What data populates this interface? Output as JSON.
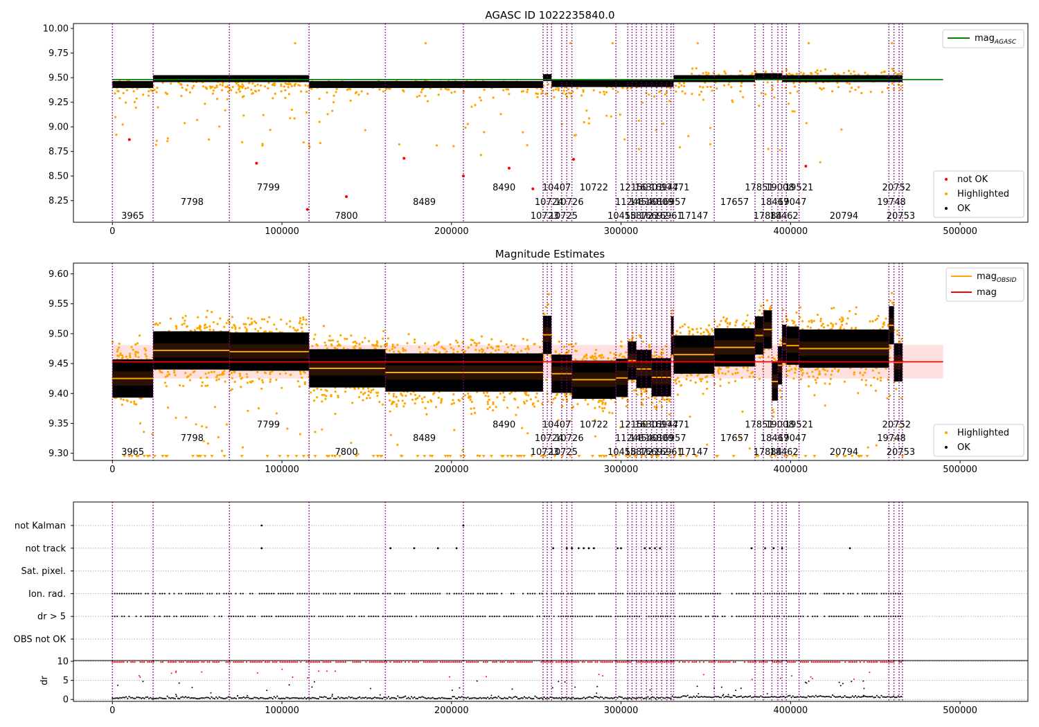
{
  "colors": {
    "ok": "#000000",
    "highlighted": "#ffa500",
    "not_ok": "#ff0000",
    "agasc_line": "#008000",
    "mag_line": "#ff0000",
    "mag_band": "#ffcccc",
    "obsid_line": "#ffa500",
    "obsid_separator": "#800080",
    "grid": "#b0b0b0"
  },
  "x_axis": {
    "range": [
      -23000,
      540000
    ],
    "ticks": [
      0,
      100000,
      200000,
      300000,
      400000,
      500000
    ],
    "tick_labels": [
      "0",
      "100000",
      "200000",
      "300000",
      "400000",
      "500000"
    ]
  },
  "obsid_boundaries": [
    0,
    24000,
    69000,
    116000,
    161000,
    207000,
    254000,
    256500,
    259000,
    265000,
    268000,
    271000,
    297000,
    304000,
    306500,
    309000,
    312000,
    315000,
    318000,
    321000,
    324000,
    327000,
    329500,
    331000,
    355000,
    379000,
    384000,
    389000,
    392500,
    395000,
    397500,
    405000,
    458000,
    461000,
    464000,
    466000
  ],
  "obsid_labels": [
    {
      "text": "3965",
      "x": 12000,
      "row": 2
    },
    {
      "text": "7798",
      "x": 47000,
      "row": 1
    },
    {
      "text": "7799",
      "x": 92000,
      "row": 0
    },
    {
      "text": "7800",
      "x": 138000,
      "row": 2
    },
    {
      "text": "8489",
      "x": 184000,
      "row": 1
    },
    {
      "text": "8490",
      "x": 231000,
      "row": 0
    },
    {
      "text": "10723",
      "x": 255000,
      "row": 2
    },
    {
      "text": "10724",
      "x": 257500,
      "row": 1
    },
    {
      "text": "10407",
      "x": 262000,
      "row": 0
    },
    {
      "text": "10725",
      "x": 266000,
      "row": 2
    },
    {
      "text": "10726",
      "x": 269500,
      "row": 1
    },
    {
      "text": "10722",
      "x": 284000,
      "row": 0
    },
    {
      "text": "10458",
      "x": 300500,
      "row": 2
    },
    {
      "text": "11246",
      "x": 305000,
      "row": 1
    },
    {
      "text": "12150",
      "x": 307500,
      "row": 0
    },
    {
      "text": "15872",
      "x": 310500,
      "row": 2
    },
    {
      "text": "14540",
      "x": 313500,
      "row": 1
    },
    {
      "text": "16301",
      "x": 316500,
      "row": 0
    },
    {
      "text": "16692",
      "x": 319500,
      "row": 2
    },
    {
      "text": "16809",
      "x": 322500,
      "row": 1
    },
    {
      "text": "16947",
      "x": 325500,
      "row": 0
    },
    {
      "text": "16961",
      "x": 328000,
      "row": 2
    },
    {
      "text": "16957",
      "x": 330000,
      "row": 1
    },
    {
      "text": "17471",
      "x": 332000,
      "row": 0
    },
    {
      "text": "17147",
      "x": 343000,
      "row": 2
    },
    {
      "text": "17657",
      "x": 367000,
      "row": 1
    },
    {
      "text": "17851",
      "x": 381500,
      "row": 0
    },
    {
      "text": "17884",
      "x": 386500,
      "row": 2
    },
    {
      "text": "18467",
      "x": 390700,
      "row": 1
    },
    {
      "text": "19008",
      "x": 393700,
      "row": 0
    },
    {
      "text": "18462",
      "x": 396200,
      "row": 2
    },
    {
      "text": "19047",
      "x": 401000,
      "row": 1
    },
    {
      "text": "19521",
      "x": 405000,
      "row": 0
    },
    {
      "text": "20794",
      "x": 431500,
      "row": 2
    },
    {
      "text": "19748",
      "x": 459500,
      "row": 1
    },
    {
      "text": "20752",
      "x": 462500,
      "row": 0
    },
    {
      "text": "20753",
      "x": 465000,
      "row": 2
    }
  ],
  "panel1": {
    "title": "AGASC ID 1022235840.0",
    "ylim": [
      8.03,
      10.05
    ],
    "yticks": [
      8.25,
      8.5,
      8.75,
      9.0,
      9.25,
      9.5,
      9.75,
      10.0
    ],
    "ytick_labels": [
      "8.25",
      "8.50",
      "8.75",
      "9.00",
      "9.25",
      "9.50",
      "9.75",
      "10.00"
    ],
    "label_rows_y": [
      8.39,
      8.24,
      8.1
    ],
    "agasc_mag": 9.48,
    "agasc_xrange": [
      0,
      490000
    ],
    "legend_agasc": "mag",
    "legend_agasc_sub": "AGASC",
    "legend_not_ok": "not OK",
    "legend_highlighted": "Highlighted",
    "legend_ok": "OK"
  },
  "panel2": {
    "title": "Magnitude Estimates",
    "ylim": [
      9.288,
      9.618
    ],
    "yticks": [
      9.3,
      9.35,
      9.4,
      9.45,
      9.5,
      9.55,
      9.6
    ],
    "ytick_labels": [
      "9.30",
      "9.35",
      "9.40",
      "9.45",
      "9.50",
      "9.55",
      "9.60"
    ],
    "label_rows_y": [
      9.349,
      9.326,
      9.303
    ],
    "mag": 9.453,
    "mag_band": [
      9.425,
      9.481
    ],
    "mag_xrange": [
      0,
      490000
    ],
    "legend_obsid": "mag",
    "legend_obsid_sub": "OBSID",
    "legend_mag": "mag",
    "legend_highlighted": "Highlighted",
    "legend_ok": "OK"
  },
  "chart_data": [
    {
      "type": "scatter",
      "title": "AGASC ID 1022235840.0",
      "xlabel": "",
      "ylabel": "",
      "ylim": [
        8.03,
        10.05
      ],
      "series": [
        {
          "name": "mag_AGASC",
          "style": "line",
          "x": [
            0,
            490000
          ],
          "y": [
            9.48,
            9.48
          ]
        },
        {
          "name": "OK",
          "description_of_trend": "dense band near segment level",
          "segments": [
            {
              "x": [
                0,
                24000
              ],
              "y": 9.43
            },
            {
              "x": [
                24000,
                116000
              ],
              "y": 9.49
            },
            {
              "x": [
                116000,
                254000
              ],
              "y": 9.43
            },
            {
              "x": [
                254000,
                259000
              ],
              "y": 9.5
            },
            {
              "x": [
                259000,
                331000
              ],
              "y": 9.44
            },
            {
              "x": [
                331000,
                379000
              ],
              "y": 9.49
            },
            {
              "x": [
                379000,
                395000
              ],
              "y": 9.51
            },
            {
              "x": [
                395000,
                466000
              ],
              "y": 9.49
            }
          ]
        },
        {
          "name": "not OK",
          "x": [
            10000,
            85000,
            115000,
            138000,
            172000,
            207000,
            234000,
            248000,
            272000,
            409000
          ],
          "y": [
            8.87,
            8.63,
            8.16,
            8.29,
            8.68,
            8.5,
            8.58,
            8.37,
            8.67,
            8.6
          ]
        }
      ]
    },
    {
      "type": "scatter",
      "title": "Magnitude Estimates",
      "ylim": [
        9.288,
        9.618
      ],
      "series": [
        {
          "name": "mag_OBSID",
          "style": "step-line",
          "segments": [
            {
              "x": [
                0,
                24000
              ],
              "y": 9.425
            },
            {
              "x": [
                24000,
                69000
              ],
              "y": 9.472
            },
            {
              "x": [
                69000,
                116000
              ],
              "y": 9.47
            },
            {
              "x": [
                116000,
                161000
              ],
              "y": 9.442
            },
            {
              "x": [
                161000,
                207000
              ],
              "y": 9.435
            },
            {
              "x": [
                207000,
                254000
              ],
              "y": 9.435
            },
            {
              "x": [
                254000,
                259000
              ],
              "y": 9.498
            },
            {
              "x": [
                259000,
                271000
              ],
              "y": 9.433
            },
            {
              "x": [
                271000,
                297000
              ],
              "y": 9.423
            },
            {
              "x": [
                297000,
                304000
              ],
              "y": 9.426
            },
            {
              "x": [
                304000,
                309000
              ],
              "y": 9.455
            },
            {
              "x": [
                309000,
                318000
              ],
              "y": 9.441
            },
            {
              "x": [
                318000,
                329500
              ],
              "y": 9.427
            },
            {
              "x": [
                329500,
                331000
              ],
              "y": 9.497
            },
            {
              "x": [
                331000,
                355000
              ],
              "y": 9.465
            },
            {
              "x": [
                355000,
                379000
              ],
              "y": 9.477
            },
            {
              "x": [
                379000,
                384000
              ],
              "y": 9.497
            },
            {
              "x": [
                384000,
                389000
              ],
              "y": 9.507
            },
            {
              "x": [
                389000,
                392500
              ],
              "y": 9.42
            },
            {
              "x": [
                392500,
                395000
              ],
              "y": 9.447
            },
            {
              "x": [
                395000,
                397500
              ],
              "y": 9.483
            },
            {
              "x": [
                397500,
                405000
              ],
              "y": 9.48
            },
            {
              "x": [
                405000,
                458000
              ],
              "y": 9.475
            },
            {
              "x": [
                458000,
                461000
              ],
              "y": 9.514
            },
            {
              "x": [
                461000,
                466000
              ],
              "y": 9.452
            }
          ]
        },
        {
          "name": "mag",
          "style": "line",
          "x": [
            0,
            490000
          ],
          "y": [
            9.453,
            9.453
          ],
          "band": [
            9.425,
            9.481
          ]
        }
      ]
    },
    {
      "type": "scatter",
      "title": "",
      "categories": [
        "not Kalman",
        "not track",
        "Sat. pixel.",
        "Ion. rad.",
        "dr > 5",
        "OBS not OK"
      ],
      "series": [
        {
          "name": "not Kalman",
          "x": [
            88000,
            207000
          ]
        },
        {
          "name": "not track",
          "x": [
            88000,
            164000,
            178000,
            192000,
            203000,
            260000,
            268000,
            271000,
            275000,
            278000,
            281000,
            284000,
            298000,
            300000,
            314000,
            317000,
            320000,
            323000,
            377000,
            385000,
            390000,
            395000,
            435000
          ]
        },
        {
          "name": "Ion. rad.",
          "x_range": [
            0,
            465000
          ]
        },
        {
          "name": "dr > 5",
          "x_range": [
            0,
            465000
          ]
        }
      ]
    },
    {
      "type": "scatter",
      "ylabel": "dr",
      "ylim": [
        -0.5,
        10.2
      ],
      "yticks": [
        0,
        5,
        10
      ],
      "series": [
        {
          "name": "dr <= 5",
          "x_range": [
            0,
            466000
          ],
          "y_typical": 0.5
        },
        {
          "name": "dr > 5",
          "x_range": [
            0,
            466000
          ],
          "y_typical": 9.8
        }
      ]
    }
  ],
  "panel3": {
    "categories": [
      "not Kalman",
      "not track",
      "Sat. pixel.",
      "Ion. rad.",
      "dr > 5",
      "OBS not OK"
    ]
  },
  "panel4": {
    "ylabel": "dr",
    "ylim": [
      -0.5,
      10.2
    ],
    "yticks": [
      0,
      5,
      10
    ],
    "ytick_labels": [
      "0",
      "5",
      "10"
    ]
  }
}
